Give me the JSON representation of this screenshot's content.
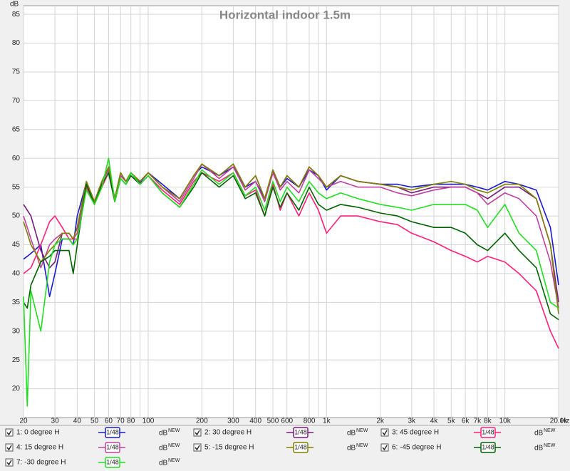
{
  "chart_data": {
    "type": "line",
    "title": "Horizontal indoor 1.5m",
    "x_unit": "Hz",
    "y_unit": "dB",
    "log_x": true,
    "grid": true,
    "xlim": [
      20,
      20000
    ],
    "ylim": [
      15,
      86.5
    ],
    "xticks": [
      20,
      30,
      40,
      50,
      60,
      70,
      80,
      100,
      200,
      300,
      400,
      500,
      600,
      800,
      {
        "value": 1000,
        "label": "1k"
      },
      {
        "value": 2000,
        "label": "2k"
      },
      {
        "value": 3000,
        "label": "3k"
      },
      {
        "value": 4000,
        "label": "4k"
      },
      {
        "value": 5000,
        "label": "5k"
      },
      {
        "value": 6000,
        "label": "6k"
      },
      {
        "value": 7000,
        "label": "7k"
      },
      {
        "value": 8000,
        "label": "8k"
      },
      {
        "value": 10000,
        "label": "10k"
      },
      {
        "value": 20000,
        "label": "20.0k"
      }
    ],
    "xminorticks": [
      90,
      900,
      9000
    ],
    "yticks": [
      20,
      25,
      30,
      35,
      40,
      45,
      50,
      55,
      60,
      65,
      70,
      75,
      80,
      85
    ],
    "legend_controls": {
      "smoothing": "1/48",
      "unit": "dB",
      "unit_tag": "NEW"
    },
    "x": [
      20,
      21,
      22,
      25,
      28,
      30,
      33,
      36,
      38,
      40,
      45,
      50,
      55,
      60,
      65,
      70,
      75,
      80,
      90,
      100,
      120,
      150,
      180,
      200,
      250,
      300,
      350,
      400,
      450,
      500,
      550,
      600,
      700,
      800,
      900,
      1000,
      1200,
      1500,
      2000,
      2500,
      3000,
      4000,
      5000,
      6000,
      7000,
      8000,
      10000,
      12000,
      15000,
      18000,
      20000
    ],
    "series": [
      {
        "name": "1: 0 degree H",
        "color": "#1a1acc",
        "values": [
          42.5,
          43,
          43.5,
          45,
          36,
          40,
          46,
          46,
          45,
          50,
          55.8,
          52.5,
          56,
          58,
          53,
          57,
          56,
          57.5,
          55.8,
          57.5,
          55.5,
          53,
          57,
          58.5,
          57,
          58.5,
          55,
          56,
          53,
          57.8,
          55,
          56.5,
          55,
          58,
          57,
          54.5,
          57,
          56,
          55.5,
          55.5,
          55,
          55.5,
          55.5,
          55.5,
          55,
          54.5,
          56,
          55.5,
          54.5,
          48,
          38
        ]
      },
      {
        "name": "2: 30 degree H",
        "color": "#7a1a7a",
        "values": [
          52,
          51,
          50,
          44,
          41,
          42,
          47,
          47,
          46,
          48,
          56,
          52.5,
          56,
          58.5,
          53,
          57.5,
          56,
          57.5,
          56,
          57.5,
          55,
          53,
          57,
          59,
          57,
          59,
          55,
          57,
          53,
          58,
          55,
          57,
          55,
          58.5,
          57,
          55,
          57,
          56,
          55.5,
          55,
          54,
          55,
          55,
          55,
          54,
          53,
          55,
          55,
          53,
          45,
          35
        ]
      },
      {
        "name": "3: 45 degree H",
        "color": "#ff1f7a",
        "values": [
          40,
          40.5,
          41,
          45,
          49,
          50,
          48,
          46,
          46,
          46,
          55,
          52,
          55,
          57.5,
          52.5,
          56.5,
          55.5,
          57,
          55.5,
          57,
          54.5,
          52,
          56,
          57.5,
          56,
          57.5,
          53.5,
          54.5,
          50,
          55.5,
          51,
          54,
          50,
          54,
          51,
          47,
          50,
          50,
          49,
          48.5,
          47,
          45.5,
          44,
          43,
          42,
          43,
          42,
          40,
          37,
          30,
          27
        ]
      },
      {
        "name": "4: 15 degree H",
        "color": "#c040a0",
        "values": [
          50,
          48,
          46,
          41,
          45,
          46,
          47,
          47,
          46,
          47,
          55.5,
          52,
          56,
          58,
          52.5,
          57,
          56,
          57.5,
          56,
          57.5,
          55,
          52.5,
          56.5,
          59,
          56.5,
          58.5,
          54.5,
          56,
          52.5,
          57.5,
          54.5,
          56,
          54,
          58,
          56.5,
          55,
          56,
          55,
          55,
          54,
          53.5,
          54.5,
          55,
          55,
          54,
          52,
          54,
          53,
          50,
          42,
          34
        ]
      },
      {
        "name": "5: -15 degree H",
        "color": "#808000",
        "values": [
          49,
          47,
          45,
          42,
          44,
          45,
          47,
          47,
          46,
          48,
          56,
          52.5,
          56,
          58.5,
          53,
          57.5,
          56,
          57.5,
          56,
          57.5,
          55,
          53,
          57,
          59,
          57,
          59,
          55,
          57,
          53,
          58,
          55,
          57,
          55,
          58.5,
          57,
          55,
          57,
          56,
          55.5,
          55,
          54.5,
          55.5,
          56,
          55.5,
          54.5,
          54,
          55.5,
          55.5,
          53,
          45,
          33
        ]
      },
      {
        "name": "6: -45 degree H",
        "color": "#006400",
        "values": [
          35,
          34,
          38,
          42,
          43,
          44,
          44,
          44,
          40,
          45,
          55.5,
          52,
          55.5,
          57.5,
          52.5,
          56.5,
          55.5,
          57,
          55.5,
          57,
          54,
          51.5,
          55,
          57.5,
          55,
          57,
          53,
          54,
          50,
          55,
          51.5,
          54,
          51,
          55,
          52,
          51,
          52,
          51.5,
          50.5,
          50,
          49,
          48,
          48,
          47,
          45,
          44,
          47,
          44,
          41,
          33,
          32
        ]
      },
      {
        "name": "7: -30 degree H",
        "color": "#22dd22",
        "values": [
          36,
          17,
          37,
          30,
          42,
          45,
          46,
          46,
          45,
          46,
          54.5,
          52,
          55,
          60,
          52.5,
          56.5,
          55.5,
          57.5,
          55.5,
          57,
          54,
          51.5,
          55.5,
          58,
          55.5,
          57.5,
          53.5,
          55,
          51,
          56,
          52.5,
          55,
          52.5,
          56,
          54,
          53,
          54,
          53,
          52,
          51.5,
          51,
          52,
          52,
          52,
          51,
          48,
          52,
          47,
          44,
          35,
          34
        ]
      }
    ]
  }
}
